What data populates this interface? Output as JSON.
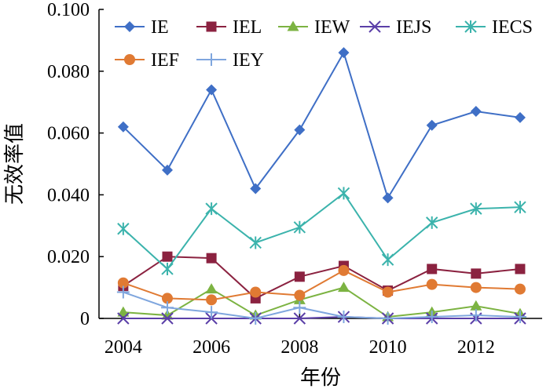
{
  "chart_data": {
    "type": "line",
    "title": "",
    "xlabel": "年份",
    "ylabel": "无效率值",
    "xlim": [
      2003.45,
      2013.5
    ],
    "ylim": [
      0,
      0.1
    ],
    "x": [
      2004,
      2005,
      2006,
      2007,
      2008,
      2009,
      2010,
      2011,
      2012,
      2013
    ],
    "x_ticks": [
      2004,
      2006,
      2008,
      2010,
      2012
    ],
    "x_tick_labels": [
      "2004",
      "2006",
      "2008",
      "2010",
      "2012"
    ],
    "y_ticks": [
      0,
      0.02,
      0.04,
      0.06,
      0.08,
      0.1
    ],
    "y_tick_labels": [
      "0",
      "0.020",
      "0.040",
      "0.060",
      "0.080",
      "0.100"
    ],
    "legend_position": "top",
    "grid": false,
    "series": [
      {
        "name": "IE",
        "color": "#3F6FC6",
        "marker": "diamond",
        "values": [
          0.062,
          0.048,
          0.074,
          0.042,
          0.061,
          0.086,
          0.039,
          0.0625,
          0.067,
          0.065
        ]
      },
      {
        "name": "IEL",
        "color": "#8B2240",
        "marker": "square",
        "values": [
          0.0105,
          0.02,
          0.0195,
          0.0065,
          0.0135,
          0.017,
          0.009,
          0.016,
          0.0145,
          0.016
        ]
      },
      {
        "name": "IEW",
        "color": "#7CB342",
        "marker": "triangle",
        "values": [
          0.002,
          0.001,
          0.0095,
          0.001,
          0.006,
          0.01,
          0.0005,
          0.002,
          0.004,
          0.0015
        ]
      },
      {
        "name": "IEJS",
        "color": "#5B3FA8",
        "marker": "x",
        "values": [
          0,
          0,
          0,
          0,
          0,
          0.0005,
          0,
          0,
          0,
          0
        ]
      },
      {
        "name": "IECS",
        "color": "#3BB3AC",
        "marker": "asterisk",
        "values": [
          0.029,
          0.016,
          0.0355,
          0.0245,
          0.0295,
          0.0405,
          0.019,
          0.031,
          0.0355,
          0.036
        ]
      },
      {
        "name": "IEF",
        "color": "#E07A33",
        "marker": "circle",
        "values": [
          0.0115,
          0.0065,
          0.006,
          0.0085,
          0.0075,
          0.0155,
          0.0085,
          0.011,
          0.01,
          0.0095
        ]
      },
      {
        "name": "IEY",
        "color": "#7FA6DE",
        "marker": "plus",
        "values": [
          0.0085,
          0.0035,
          0.002,
          0.0,
          0.0035,
          0.0005,
          0.0,
          0.0005,
          0.001,
          0.0005
        ]
      }
    ]
  }
}
